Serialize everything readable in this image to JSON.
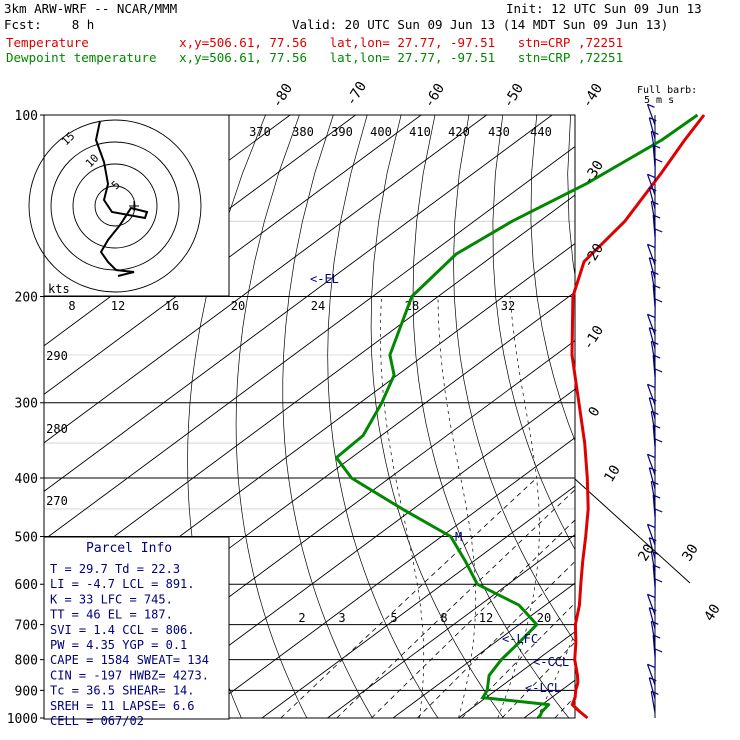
{
  "header": {
    "model": "3km ARW-WRF -- NCAR/MMM",
    "init": "Init: 12 UTC Sun 09 Jun 13",
    "fcst": "Fcst:    8 h",
    "valid": "Valid: 20 UTC Sun 09 Jun 13 (14 MDT Sun 09 Jun 13)",
    "temperature_line": "Temperature            x,y=506.61, 77.56   lat,lon= 27.77, -97.51   stn=CRP ,72251",
    "dewpoint_line": "Dewpoint temperature   x,y=506.61, 77.56   lat,lon= 27.77, -97.51   stn=CRP ,72251"
  },
  "colors": {
    "temperature": "#e00000",
    "dewpoint": "#008800",
    "parcel_text": "#000080",
    "wind_barbs": "#000080",
    "grid": "#000000"
  },
  "labels": {
    "full_barb": "Full barb:",
    "full_barb_unit": "5 m s",
    "hodo_units": "kts",
    "el": "<-EL",
    "lfc": "<-LFC",
    "ccl": "<-CCL",
    "lcl": "<-LCL"
  },
  "parcel_info": {
    "title": "Parcel Info",
    "rows": [
      "T   =   29.7  Td  =  22.3",
      "LI  =   -4.7  LCL =  891.",
      "K   =     33  LFC =  745.",
      "TT  =     46  EL  =  187.",
      "SVI =    1.4  CCL =  806.",
      "PW  =   4.35  YGP =   0.1",
      "CAPE =  1584  SWEAT=  134",
      "CIN  =  -197  HWBZ= 4273.",
      "Tc  =   36.5  SHEAR=  14.",
      "SREH =    11  LAPSE=  6.6",
      "CELL = 067/02"
    ]
  },
  "chart_data": {
    "type": "line",
    "diagram": "skew-T log-p",
    "y_axis": "pressure (hPa), log scale",
    "pressure_levels": [
      100,
      200,
      300,
      400,
      500,
      600,
      700,
      800,
      900,
      1000
    ],
    "pressure_range": [
      100,
      1000
    ],
    "isotherm_labels": [
      "-80",
      "-70",
      "-60",
      "-50",
      "-40",
      "-30",
      "-20",
      "-10",
      "0",
      "10",
      "20",
      "30",
      "40"
    ],
    "theta_labels": [
      "370",
      "380",
      "390",
      "400",
      "410",
      "420",
      "430",
      "440"
    ],
    "theta_e_labels": [
      "290",
      "280",
      "270"
    ],
    "mixing_ratio_labels": [
      "2",
      "3",
      "5",
      "8",
      "12",
      "20"
    ],
    "hodograph": {
      "ring_labels": [
        "5",
        "10",
        "15"
      ],
      "speed_labels": [
        "8",
        "12",
        "16",
        "20",
        "24",
        "28",
        "32"
      ]
    },
    "series": [
      {
        "name": "Temperature",
        "points": [
          {
            "p": 1000,
            "t": 29.7
          },
          {
            "p": 975,
            "t": 27.1
          },
          {
            "p": 950,
            "t": 24.6
          },
          {
            "p": 925,
            "t": 23.6
          },
          {
            "p": 900,
            "t": 22.2
          },
          {
            "p": 875,
            "t": 21.0
          },
          {
            "p": 850,
            "t": 19.4
          },
          {
            "p": 800,
            "t": 15.7
          },
          {
            "p": 750,
            "t": 12.4
          },
          {
            "p": 700,
            "t": 8.6
          },
          {
            "p": 650,
            "t": 5.2
          },
          {
            "p": 600,
            "t": 1.1
          },
          {
            "p": 550,
            "t": -3.3
          },
          {
            "p": 500,
            "t": -8.0
          },
          {
            "p": 450,
            "t": -13.3
          },
          {
            "p": 400,
            "t": -19.8
          },
          {
            "p": 350,
            "t": -27.4
          },
          {
            "p": 300,
            "t": -36.6
          },
          {
            "p": 250,
            "t": -47.5
          },
          {
            "p": 200,
            "t": -59.4
          },
          {
            "p": 175,
            "t": -64.9
          },
          {
            "p": 150,
            "t": -67.0
          },
          {
            "p": 125,
            "t": -71.3
          },
          {
            "p": 110,
            "t": -74.6
          },
          {
            "p": 100,
            "t": -76.8
          }
        ]
      },
      {
        "name": "Dewpoint temperature",
        "points": [
          {
            "p": 1000,
            "t": 22.3
          },
          {
            "p": 975,
            "t": 21.4
          },
          {
            "p": 950,
            "t": 21.0
          },
          {
            "p": 925,
            "t": 9.5
          },
          {
            "p": 900,
            "t": 8.7
          },
          {
            "p": 850,
            "t": 5.9
          },
          {
            "p": 800,
            "t": 4.5
          },
          {
            "p": 750,
            "t": 3.7
          },
          {
            "p": 700,
            "t": 2.7
          },
          {
            "p": 650,
            "t": -4.0
          },
          {
            "p": 600,
            "t": -14.7
          },
          {
            "p": 550,
            "t": -21.2
          },
          {
            "p": 500,
            "t": -28.6
          },
          {
            "p": 450,
            "t": -41.7
          },
          {
            "p": 400,
            "t": -55.8
          },
          {
            "p": 370,
            "t": -62.3
          },
          {
            "p": 340,
            "t": -62.8
          },
          {
            "p": 300,
            "t": -66.7
          },
          {
            "p": 270,
            "t": -70.5
          },
          {
            "p": 250,
            "t": -75.3
          },
          {
            "p": 200,
            "t": -84.0
          },
          {
            "p": 170,
            "t": -86.0
          },
          {
            "p": 150,
            "t": -84.2
          },
          {
            "p": 130,
            "t": -80.6
          },
          {
            "p": 110,
            "t": -78.1
          },
          {
            "p": 100,
            "t": -77.8
          }
        ]
      }
    ]
  }
}
